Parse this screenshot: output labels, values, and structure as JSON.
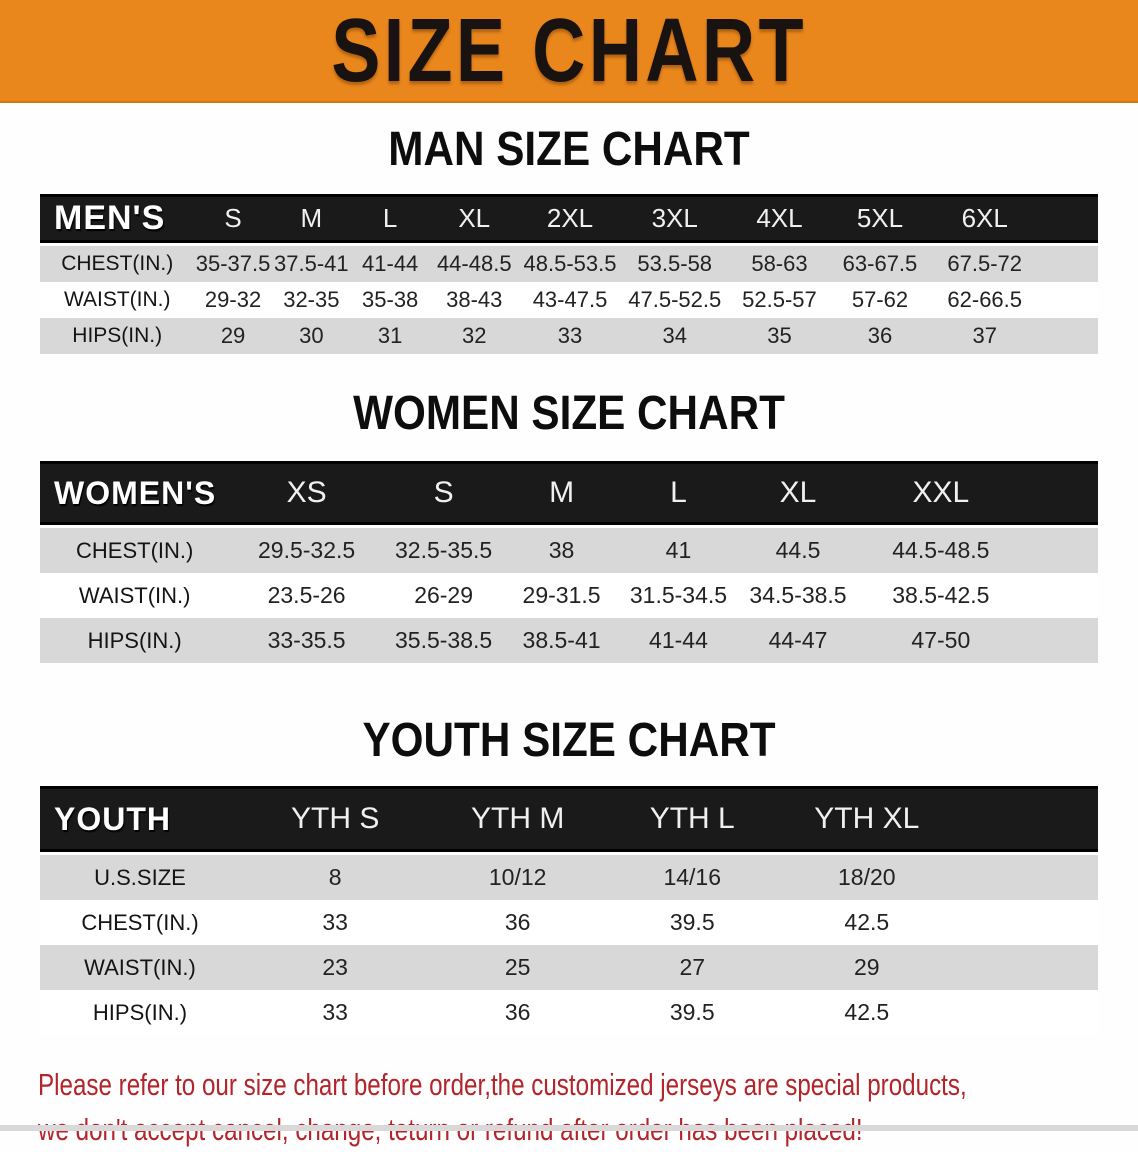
{
  "banner": {
    "title": "SIZE CHART"
  },
  "colors": {
    "banner_orange": "#E9861C",
    "header_black": "#1A1A1A",
    "row_gray": "#D8D8D8",
    "footer_red": "#B2252A"
  },
  "sections": [
    {
      "title": "MAN SIZE CHART",
      "table": {
        "header_label": "MEN'S",
        "columns": [
          "S",
          "M",
          "L",
          "XL",
          "2XL",
          "3XL",
          "4XL",
          "5XL",
          "6XL"
        ],
        "rows": [
          {
            "label": "CHEST(IN.)",
            "values": [
              "35-37.5",
              "37.5-41",
              "41-44",
              "44-48.5",
              "48.5-53.5",
              "53.5-58",
              "58-63",
              "63-67.5",
              "67.5-72"
            ]
          },
          {
            "label": "WAIST(IN.)",
            "values": [
              "29-32",
              "32-35",
              "35-38",
              "38-43",
              "43-47.5",
              "47.5-52.5",
              "52.5-57",
              "57-62",
              "62-66.5"
            ]
          },
          {
            "label": "HIPS(IN.)",
            "values": [
              "29",
              "30",
              "31",
              "32",
              "33",
              "34",
              "35",
              "36",
              "37"
            ]
          }
        ]
      }
    },
    {
      "title": "WOMEN SIZE CHART",
      "table": {
        "header_label": "WOMEN'S",
        "columns": [
          "XS",
          "S",
          "M",
          "L",
          "XL",
          "XXL"
        ],
        "rows": [
          {
            "label": "CHEST(IN.)",
            "values": [
              "29.5-32.5",
              "32.5-35.5",
              "38",
              "41",
              "44.5",
              "44.5-48.5"
            ]
          },
          {
            "label": "WAIST(IN.)",
            "values": [
              "23.5-26",
              "26-29",
              "29-31.5",
              "31.5-34.5",
              "34.5-38.5",
              "38.5-42.5"
            ]
          },
          {
            "label": "HIPS(IN.)",
            "values": [
              "33-35.5",
              "35.5-38.5",
              "38.5-41",
              "41-44",
              "44-47",
              "47-50"
            ]
          }
        ]
      }
    },
    {
      "title": "YOUTH SIZE CHART",
      "table": {
        "header_label": "YOUTH",
        "columns": [
          "YTH S",
          "YTH M",
          "YTH L",
          "YTH XL"
        ],
        "rows": [
          {
            "label": "U.S.SIZE",
            "values": [
              "8",
              "10/12",
              "14/16",
              "18/20"
            ]
          },
          {
            "label": "CHEST(IN.)",
            "values": [
              "33",
              "36",
              "39.5",
              "42.5"
            ]
          },
          {
            "label": "WAIST(IN.)",
            "values": [
              "23",
              "25",
              "27",
              "29"
            ]
          },
          {
            "label": "HIPS(IN.)",
            "values": [
              "33",
              "36",
              "39.5",
              "42.5"
            ]
          }
        ]
      }
    }
  ],
  "footer": {
    "line1": "Please refer to our size chart before order,the customized jerseys are special products,",
    "line2": "we don't accept cancel, change, teturn or refund after order has been placed!"
  }
}
